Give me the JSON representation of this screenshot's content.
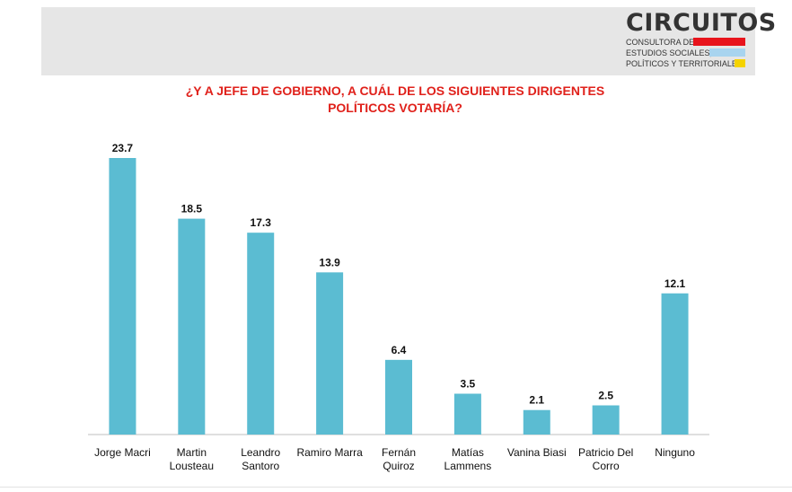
{
  "logo": {
    "name": "CIRCUITOS",
    "line1": "CONSULTORA DE",
    "line2": "ESTUDIOS SOCIALES,",
    "line3": "POLÍTICOS Y TERRITORIALES",
    "colors": {
      "red": "#e8141c",
      "blue": "#a8d4ef",
      "yellow": "#f5d300"
    }
  },
  "title_lines": [
    "¿Y A JEFE DE GOBIERNO, A CUÁL DE LOS SIGUIENTES DIRIGENTES",
    "POLÍTICOS VOTARÍA?"
  ],
  "chart_data": {
    "type": "bar",
    "title": "¿Y A JEFE DE GOBIERNO, A CUÁL DE LOS SIGUIENTES DIRIGENTES POLÍTICOS VOTARÍA?",
    "xlabel": "",
    "ylabel": "",
    "ylim": [
      0,
      23.7
    ],
    "grid": false,
    "legend": "none",
    "bar_color": "#5bbcd2",
    "categories": [
      [
        "Jorge Macri"
      ],
      [
        "Martin",
        "Lousteau"
      ],
      [
        "Leandro",
        "Santoro"
      ],
      [
        "Ramiro Marra"
      ],
      [
        "Fernán",
        "Quiroz"
      ],
      [
        "Matías",
        "Lammens"
      ],
      [
        "Vanina Biasi"
      ],
      [
        "Patricio Del",
        "Corro"
      ],
      [
        "Ninguno"
      ]
    ],
    "values": [
      23.7,
      18.5,
      17.3,
      13.9,
      6.4,
      3.5,
      2.1,
      2.5,
      12.1
    ],
    "value_labels": [
      "23.7",
      "18.5",
      "17.3",
      "13.9",
      "6.4",
      "3.5",
      "2.1",
      "2.5",
      "12.1"
    ]
  }
}
